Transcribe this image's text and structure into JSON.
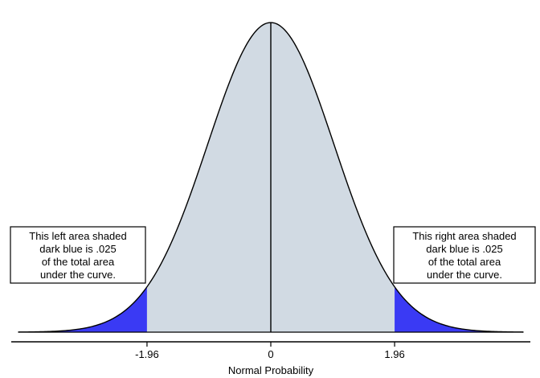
{
  "chart_data": {
    "type": "area",
    "distribution": "standard normal",
    "mean": 0,
    "sd": 1,
    "xlim": [
      -4,
      4
    ],
    "ylim": [
      0,
      0.4
    ],
    "xlabel": "Normal Probability",
    "ylabel": "",
    "title": "",
    "x_ticks": [
      -1.96,
      0,
      1.96
    ],
    "x_tick_labels": [
      "-1.96",
      "0",
      "1.96"
    ],
    "center_line_x": 0,
    "regions": [
      {
        "from": -4,
        "to": -1.96,
        "fill_color": "#3a3af4",
        "area": 0.025
      },
      {
        "from": -1.96,
        "to": 1.96,
        "fill_color": "#d1dae3",
        "area": 0.95
      },
      {
        "from": 1.96,
        "to": 4,
        "fill_color": "#3a3af4",
        "area": 0.025
      }
    ],
    "annotations": [
      {
        "side": "left",
        "lines": [
          "This left area shaded",
          "dark blue is .025",
          "of the total area",
          "under the curve."
        ]
      },
      {
        "side": "right",
        "lines": [
          "This right area shaded",
          "dark blue is .025",
          "of the total area",
          "under the curve."
        ]
      }
    ],
    "grid": false,
    "legend": "none",
    "colors": {
      "curve": "#000000",
      "center_fill": "#d1dae3",
      "tail_fill": "#3a3af4",
      "axis": "#000000"
    }
  }
}
